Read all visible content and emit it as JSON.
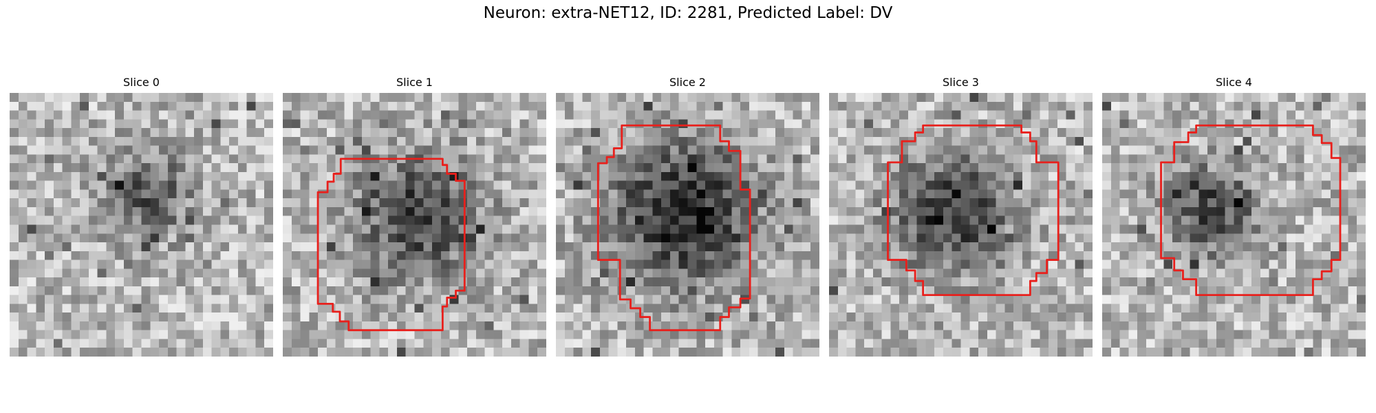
{
  "figure": {
    "suptitle": "Neuron: extra-NET12, ID: 2281, Predicted Label: DV",
    "contour_color": "#e8201c",
    "panels": [
      {
        "title": "Slice 0",
        "has_contour": false
      },
      {
        "title": "Slice 1",
        "has_contour": true
      },
      {
        "title": "Slice 2",
        "has_contour": true
      },
      {
        "title": "Slice 3",
        "has_contour": true
      },
      {
        "title": "Slice 4",
        "has_contour": true
      }
    ]
  }
}
